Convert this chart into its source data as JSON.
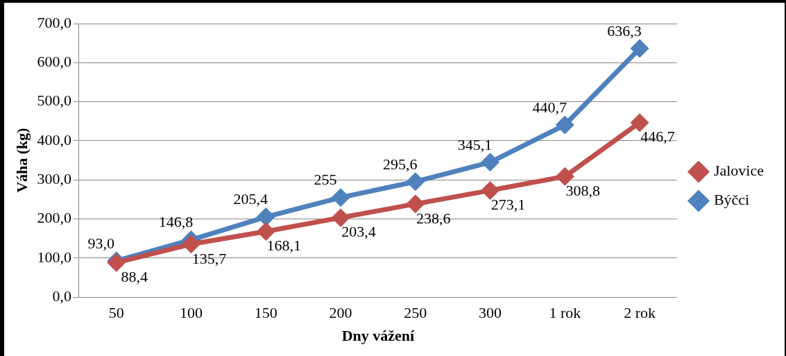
{
  "chart_data": {
    "type": "line",
    "xlabel": "Dny vážení",
    "ylabel": "Váha (kg)",
    "categories": [
      "50",
      "100",
      "150",
      "200",
      "250",
      "300",
      "1 rok",
      "2 rok"
    ],
    "series": [
      {
        "name": "Býčci",
        "color": "#4f81bd",
        "values": [
          93.0,
          146.8,
          205.4,
          255,
          295.6,
          345.1,
          440.7,
          636.3
        ],
        "value_labels": [
          "93,0",
          "146,8",
          "205,4",
          "255",
          "295,6",
          "345,1",
          "440,7",
          "636,3"
        ]
      },
      {
        "name": "Jalovice",
        "color": "#c0504d",
        "values": [
          88.4,
          135.7,
          168.1,
          203.4,
          238.6,
          273.1,
          308.8,
          446.7
        ],
        "value_labels": [
          "88,4",
          "135,7",
          "168,1",
          "203,4",
          "238,6",
          "273,1",
          "308,8",
          "446,7"
        ]
      }
    ],
    "ylim": [
      0,
      700
    ],
    "yticks": [
      {
        "value": 0,
        "label": "0,0"
      },
      {
        "value": 100,
        "label": "100,0"
      },
      {
        "value": 200,
        "label": "200,0"
      },
      {
        "value": 300,
        "label": "300,0"
      },
      {
        "value": 400,
        "label": "400,0"
      },
      {
        "value": 500,
        "label": "500,0"
      },
      {
        "value": 600,
        "label": "600,0"
      },
      {
        "value": 700,
        "label": "700,0"
      }
    ],
    "grid": "y",
    "legend": "right",
    "marker": "diamond",
    "line_style": "solid"
  }
}
